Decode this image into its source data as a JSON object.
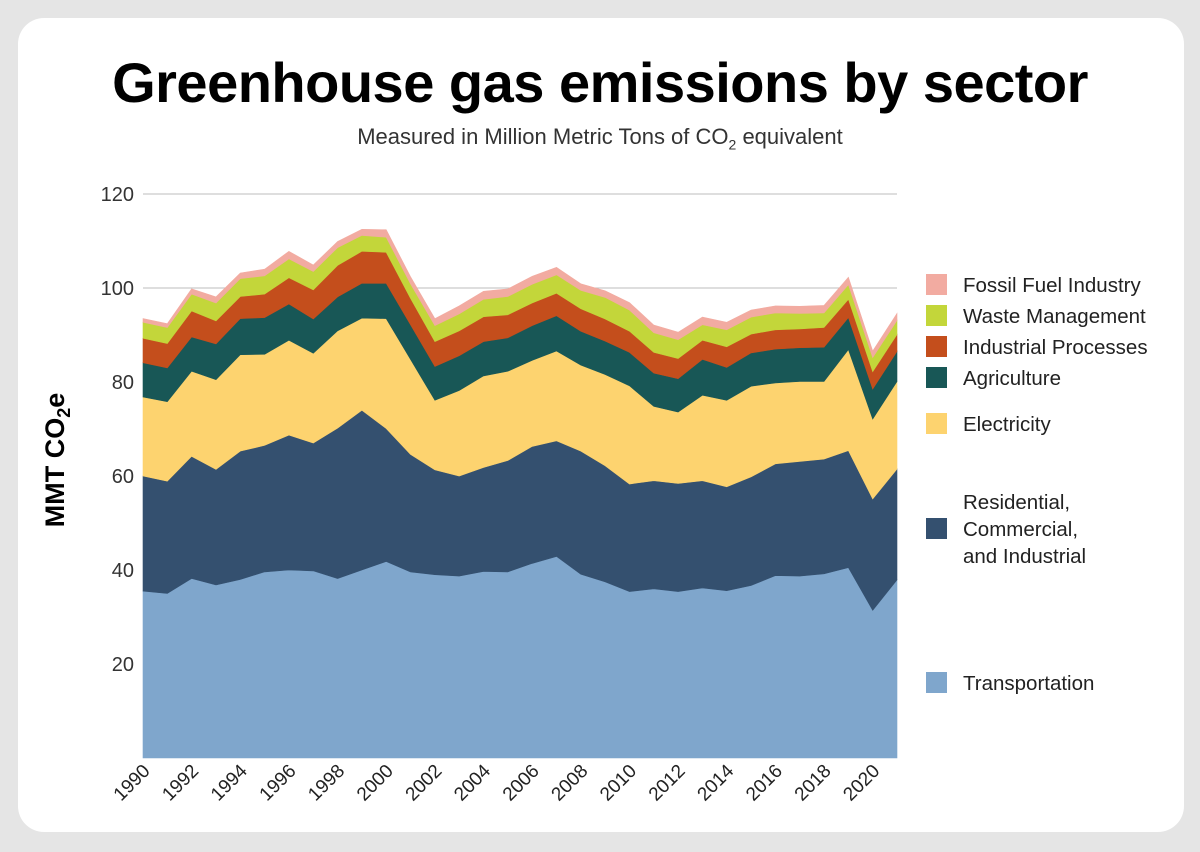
{
  "title": "Greenhouse gas emissions by sector",
  "subtitle_pre": "Measured in Million Metric Tons of CO",
  "subtitle_sub": "2",
  "subtitle_post": " equivalent",
  "chart_data": {
    "type": "area",
    "stacked": true,
    "ylabel_main": "MMT CO",
    "ylabel_sub": "2",
    "ylabel_post": "e",
    "ylim": [
      0,
      120
    ],
    "yticks": [
      20,
      40,
      60,
      80,
      100,
      120
    ],
    "grid": "horizontal",
    "legend_position": "right",
    "x": [
      1990,
      1991,
      1992,
      1993,
      1994,
      1995,
      1996,
      1997,
      1998,
      1999,
      2000,
      2001,
      2002,
      2003,
      2004,
      2005,
      2006,
      2007,
      2008,
      2009,
      2010,
      2011,
      2012,
      2013,
      2014,
      2015,
      2016,
      2017,
      2018,
      2019,
      2020,
      2021
    ],
    "xtick_labels": [
      "1990",
      "1992",
      "1994",
      "1996",
      "1998",
      "2000",
      "2002",
      "2004",
      "2006",
      "2008",
      "2010",
      "2012",
      "2014",
      "2016",
      "2018",
      "2020"
    ],
    "series": [
      {
        "name": "Transportation",
        "color": "#7fa6cc",
        "values": [
          35.5,
          35.0,
          38.2,
          36.8,
          38.0,
          39.6,
          40.0,
          39.8,
          38.2,
          40.0,
          41.8,
          39.6,
          39.0,
          38.7,
          39.7,
          39.6,
          41.4,
          42.9,
          39.1,
          37.5,
          35.4,
          36.0,
          35.4,
          36.2,
          35.6,
          36.7,
          38.8,
          38.7,
          39.2,
          40.5,
          31.4,
          37.9
        ]
      },
      {
        "name": "Residential, Commercial, and Industrial",
        "color": "#34506f",
        "values": [
          24.5,
          23.9,
          26.0,
          24.6,
          27.3,
          26.9,
          28.7,
          27.2,
          32.0,
          34.0,
          28.3,
          25.0,
          22.3,
          21.3,
          22.1,
          23.7,
          24.9,
          24.6,
          26.2,
          24.7,
          22.9,
          23.0,
          23.0,
          22.8,
          22.1,
          23.1,
          23.8,
          24.4,
          24.4,
          24.9,
          23.7,
          23.6
        ]
      },
      {
        "name": "Electricity",
        "color": "#fdd36f",
        "values": [
          16.8,
          16.9,
          18.1,
          19.1,
          20.5,
          19.4,
          20.2,
          19.1,
          20.7,
          19.6,
          23.4,
          20.2,
          14.8,
          18.2,
          19.5,
          19.0,
          18.3,
          19.1,
          18.3,
          19.4,
          20.9,
          15.8,
          15.2,
          18.2,
          18.4,
          19.3,
          17.2,
          17.0,
          16.5,
          21.5,
          17.0,
          18.6
        ]
      },
      {
        "name": "Agriculture",
        "color": "#185756",
        "values": [
          7.3,
          7.2,
          7.3,
          7.6,
          7.7,
          7.8,
          7.7,
          7.3,
          7.2,
          7.4,
          7.5,
          7.4,
          7.2,
          7.4,
          7.3,
          7.1,
          7.4,
          7.5,
          7.2,
          7.1,
          7.1,
          7.1,
          7.1,
          7.6,
          7.0,
          7.1,
          7.2,
          7.2,
          7.3,
          6.8,
          6.4,
          6.4
        ]
      },
      {
        "name": "Industrial Processes",
        "color": "#c44e1c",
        "values": [
          5.2,
          5.2,
          5.5,
          4.9,
          4.7,
          5.0,
          5.6,
          6.2,
          6.7,
          6.8,
          6.6,
          5.6,
          5.3,
          5.3,
          5.3,
          4.9,
          4.8,
          4.8,
          4.8,
          4.7,
          4.5,
          4.4,
          4.3,
          4.1,
          4.4,
          4.0,
          4.1,
          4.0,
          4.2,
          3.9,
          3.7,
          3.6
        ]
      },
      {
        "name": "Waste Management",
        "color": "#c3d63a",
        "values": [
          3.4,
          3.4,
          3.6,
          3.8,
          3.8,
          3.9,
          4.0,
          3.9,
          3.8,
          3.4,
          3.2,
          3.1,
          3.4,
          3.6,
          3.7,
          3.9,
          4.0,
          3.9,
          3.9,
          4.6,
          4.5,
          4.2,
          4.0,
          3.3,
          3.6,
          3.6,
          3.6,
          3.3,
          3.1,
          3.1,
          3.0,
          3.0
        ]
      },
      {
        "name": "Fossil Fuel Industry",
        "color": "#f2aba1",
        "values": [
          0.8,
          0.8,
          1.1,
          1.3,
          1.2,
          1.4,
          1.6,
          1.4,
          1.3,
          1.3,
          1.6,
          1.5,
          1.5,
          1.7,
          1.7,
          1.6,
          1.7,
          1.6,
          1.4,
          1.4,
          1.6,
          1.6,
          1.6,
          1.6,
          1.6,
          1.5,
          1.5,
          1.5,
          1.6,
          1.6,
          1.4,
          1.5
        ]
      }
    ]
  }
}
